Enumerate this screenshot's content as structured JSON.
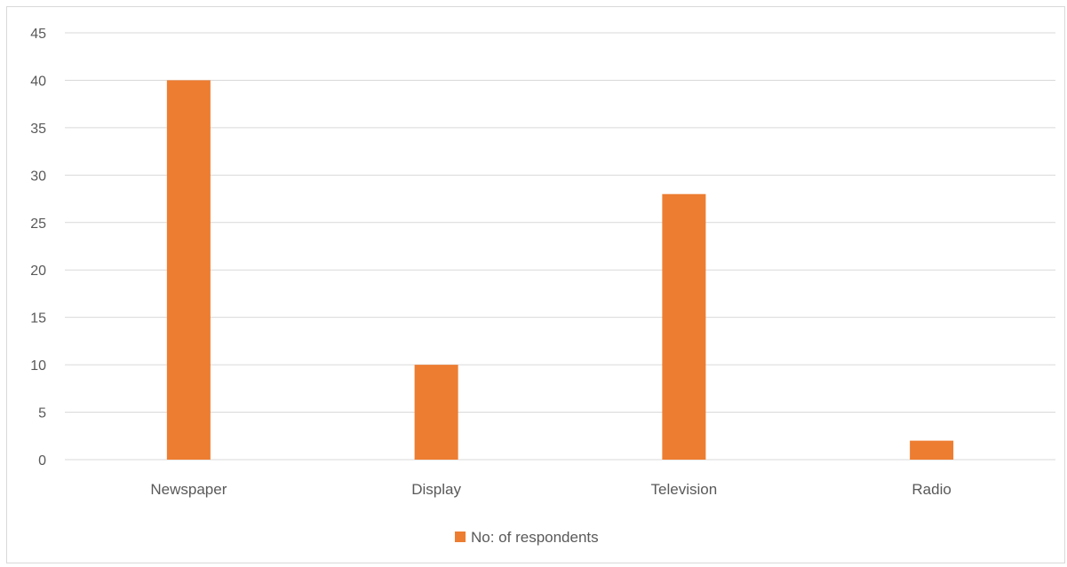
{
  "chart_data": {
    "type": "bar",
    "categories": [
      "Newspaper",
      "Display",
      "Television",
      "Radio"
    ],
    "series": [
      {
        "name": "No: of respondents",
        "values": [
          40,
          10,
          28,
          2
        ]
      }
    ],
    "ylim": [
      0,
      45
    ],
    "yticks": [
      0,
      5,
      10,
      15,
      20,
      25,
      30,
      35,
      40,
      45
    ],
    "grid": true,
    "legend": "bottom",
    "colors": {
      "bar": "#ed7d31",
      "grid": "#d9d9d9",
      "text": "#595959"
    }
  }
}
